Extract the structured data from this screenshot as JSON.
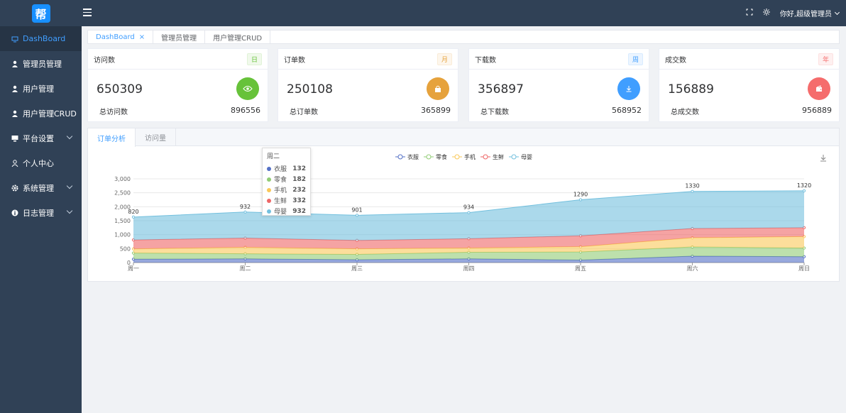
{
  "sidebar": {
    "logo_text": "帮",
    "items": [
      {
        "label": "DashBoard"
      },
      {
        "label": "管理员管理"
      },
      {
        "label": "用户管理"
      },
      {
        "label": "用户管理CRUD"
      },
      {
        "label": "平台设置"
      },
      {
        "label": "个人中心"
      },
      {
        "label": "系统管理"
      },
      {
        "label": "日志管理"
      }
    ]
  },
  "navbar": {
    "user_label": "你好,超级管理员"
  },
  "tags": [
    {
      "label": "DashBoard"
    },
    {
      "label": "管理员管理"
    },
    {
      "label": "用户管理CRUD"
    }
  ],
  "cards": [
    {
      "title": "访问数",
      "badge": "日",
      "value": "650309",
      "sub_label": "总访问数",
      "total": "896556",
      "color": "#67c23a",
      "icon": "eye-icon"
    },
    {
      "title": "订单数",
      "badge": "月",
      "value": "250108",
      "sub_label": "总订单数",
      "total": "365899",
      "color": "#e6a23c",
      "icon": "bag-icon"
    },
    {
      "title": "下载数",
      "badge": "周",
      "value": "356897",
      "sub_label": "总下载数",
      "total": "568952",
      "color": "#409eff",
      "icon": "download-icon"
    },
    {
      "title": "成交数",
      "badge": "年",
      "value": "156889",
      "sub_label": "总成交数",
      "total": "956889",
      "color": "#f56c6c",
      "icon": "wallet-icon"
    }
  ],
  "chart_tabs": [
    {
      "label": "订单分析"
    },
    {
      "label": "访问量"
    }
  ],
  "tooltip": {
    "title": "周二"
  },
  "chart_data": {
    "type": "area",
    "stacked": true,
    "categories": [
      "周一",
      "周二",
      "周三",
      "周四",
      "周五",
      "周六",
      "周日"
    ],
    "ylim": [
      0,
      3000
    ],
    "yticks": [
      "0",
      "500",
      "1,000",
      "1,500",
      "2,000",
      "2,500",
      "3,000"
    ],
    "legend_position": "top-center",
    "series": [
      {
        "name": "衣服",
        "color": "#5470c6",
        "values": [
          120,
          132,
          101,
          134,
          90,
          230,
          210
        ]
      },
      {
        "name": "零食",
        "color": "#91cc75",
        "values": [
          220,
          182,
          191,
          234,
          290,
          330,
          310
        ]
      },
      {
        "name": "手机",
        "color": "#fac858",
        "values": [
          150,
          232,
          201,
          154,
          190,
          330,
          410
        ]
      },
      {
        "name": "生鲜",
        "color": "#ee6666",
        "values": [
          320,
          332,
          301,
          334,
          390,
          330,
          320
        ]
      },
      {
        "name": "母婴",
        "color": "#73c0de",
        "values": [
          820,
          932,
          901,
          934,
          1290,
          1330,
          1320
        ]
      }
    ]
  }
}
